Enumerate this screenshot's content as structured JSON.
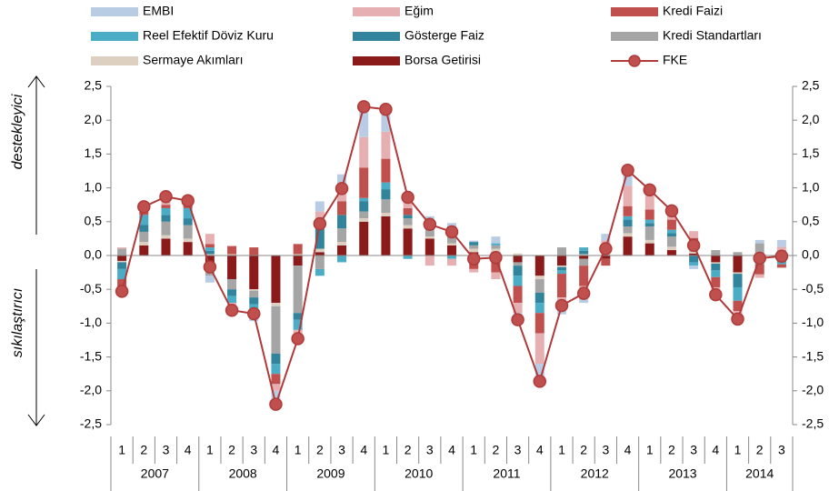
{
  "chart_data": {
    "type": "bar",
    "stacked": true,
    "categories": [
      "1",
      "2",
      "3",
      "4",
      "1",
      "2",
      "3",
      "4",
      "1",
      "2",
      "3",
      "4",
      "1",
      "2",
      "3",
      "4",
      "1",
      "2",
      "3",
      "4",
      "1",
      "2",
      "3",
      "4",
      "1",
      "2",
      "3",
      "4",
      "1",
      "2",
      "3"
    ],
    "year_groups": [
      "2007",
      "2008",
      "2009",
      "2010",
      "2011",
      "2012",
      "2013",
      "2014"
    ],
    "annotations": [
      "destekleyici",
      "sıkılaştırıcı"
    ],
    "ylim": [
      -2.5,
      2.5
    ],
    "yticks": [
      {
        "value": -2.5,
        "label": "-2,5"
      },
      {
        "value": -2,
        "label": "-2,0"
      },
      {
        "value": -1.5,
        "label": "-1,5"
      },
      {
        "value": -1,
        "label": "-1,0"
      },
      {
        "value": -0.5,
        "label": "-0,5"
      },
      {
        "value": 0,
        "label": "0,0"
      },
      {
        "value": 0.5,
        "label": "0,5"
      },
      {
        "value": 1,
        "label": "1,0"
      },
      {
        "value": 1.5,
        "label": "1,5"
      },
      {
        "value": 2,
        "label": "2,0"
      },
      {
        "value": 2.5,
        "label": "2,5"
      }
    ],
    "series": [
      {
        "name": "EMBI",
        "color": "#b8cce4",
        "values": [
          -0.05,
          0.05,
          0.05,
          0.05,
          -0.1,
          -0.05,
          -0.05,
          -0.2,
          -0.15,
          0.15,
          0.2,
          0.4,
          0.4,
          0.05,
          0.05,
          0.05,
          0.02,
          0.1,
          -0.15,
          -0.2,
          -0.05,
          -0.05,
          0.1,
          0.2,
          0.1,
          0.05,
          -0.05,
          -0.05,
          -0.05,
          0.05,
          0.1
        ]
      },
      {
        "name": "Eğim",
        "color": "#e6b0b3",
        "values": [
          0.02,
          0.05,
          0.1,
          0.05,
          0.15,
          -0.1,
          -0.1,
          -0.1,
          -0.05,
          0.2,
          0.2,
          0.45,
          0.4,
          0.15,
          -0.15,
          -0.1,
          -0.05,
          -0.1,
          -0.15,
          -0.45,
          -0.2,
          -0.2,
          0.05,
          0.3,
          0.2,
          0.1,
          0.1,
          -0.1,
          -0.1,
          -0.05,
          0.05
        ]
      },
      {
        "name": "Kredi Faizi",
        "color": "#c0504d",
        "values": [
          -0.15,
          0.05,
          0.05,
          0.05,
          0.05,
          0.12,
          0.12,
          -0.15,
          0.15,
          0.05,
          0.2,
          0.45,
          0.35,
          0.1,
          0.05,
          0.1,
          -0.15,
          -0.2,
          -0.25,
          -0.3,
          -0.35,
          -0.3,
          -0.1,
          0.15,
          0.15,
          0.15,
          0.1,
          -0.15,
          -0.15,
          -0.15,
          -0.05
        ]
      },
      {
        "name": "Reel Efektif Döviz Kuru",
        "color": "#4bacc6",
        "values": [
          -0.15,
          0.15,
          0.1,
          0.15,
          0.05,
          -0.1,
          -0.1,
          -0.15,
          -0.15,
          -0.1,
          -0.1,
          0.05,
          0.1,
          -0.05,
          0.05,
          -0.05,
          -0.05,
          0.03,
          -0.15,
          -0.15,
          -0.05,
          0.05,
          0.05,
          0.05,
          0.05,
          0.05,
          -0.05,
          -0.1,
          -0.2,
          -0.03,
          -0.03
        ]
      },
      {
        "name": "Gösterge Faiz",
        "color": "#31849b",
        "values": [
          -0.1,
          0.1,
          0.1,
          0.1,
          0.05,
          -0.1,
          -0.1,
          -0.15,
          -0.1,
          0.3,
          0.2,
          0.15,
          0.15,
          0.05,
          0.05,
          0.05,
          0.05,
          -0.05,
          -0.15,
          -0.15,
          -0.05,
          0.05,
          0.05,
          0.1,
          0.05,
          0.05,
          -0.1,
          -0.1,
          -0.2,
          -0.05,
          -0.05
        ]
      },
      {
        "name": "Kredi Standartları",
        "color": "#a5a5a5",
        "values": [
          0.1,
          0.15,
          0.2,
          0.2,
          -0.1,
          -0.15,
          -0.1,
          -0.7,
          -0.7,
          -0.2,
          0.2,
          0.1,
          0.2,
          0.1,
          0.1,
          0.1,
          0.05,
          0.05,
          -0.05,
          -0.2,
          0.12,
          -0.1,
          0.05,
          0.1,
          0.2,
          0.15,
          0.1,
          0.08,
          0.05,
          0.15,
          0.05
        ]
      },
      {
        "name": "Sermaye Akımları",
        "color": "#ddd0c0",
        "values": [
          -0.02,
          0.05,
          0.05,
          0.05,
          0.02,
          0.02,
          -0.02,
          -0.05,
          0.02,
          0.05,
          0.05,
          0.05,
          0.05,
          0.05,
          0.03,
          0.03,
          0.05,
          0.05,
          0.03,
          -0.05,
          -0.02,
          0.02,
          0.02,
          0.05,
          0.05,
          0.05,
          0.03,
          -0.02,
          -0.02,
          0.03,
          0.03
        ]
      },
      {
        "name": "Borsa Getirisi",
        "color": "#8b1a1a",
        "values": [
          -0.08,
          0.15,
          0.25,
          0.2,
          -0.2,
          -0.35,
          -0.5,
          -0.7,
          -0.15,
          0.05,
          0.15,
          0.5,
          0.58,
          0.4,
          0.25,
          0.15,
          0.05,
          0.05,
          -0.1,
          -0.3,
          -0.15,
          -0.05,
          -0.05,
          0.28,
          0.18,
          0.08,
          0.03,
          -0.1,
          -0.25,
          -0.05,
          -0.05
        ]
      },
      {
        "name": "FKE",
        "type": "line",
        "color": "#b03a3a",
        "marker_color": "#c0504d",
        "values": [
          -0.53,
          0.72,
          0.87,
          0.81,
          -0.17,
          -0.81,
          -0.86,
          -2.2,
          -1.23,
          0.47,
          0.99,
          2.2,
          2.16,
          0.86,
          0.46,
          0.35,
          -0.05,
          -0.03,
          -0.95,
          -1.86,
          -0.74,
          -0.56,
          0.1,
          1.26,
          0.97,
          0.66,
          0.15,
          -0.58,
          -0.94,
          -0.04,
          -0.01
        ]
      }
    ]
  }
}
